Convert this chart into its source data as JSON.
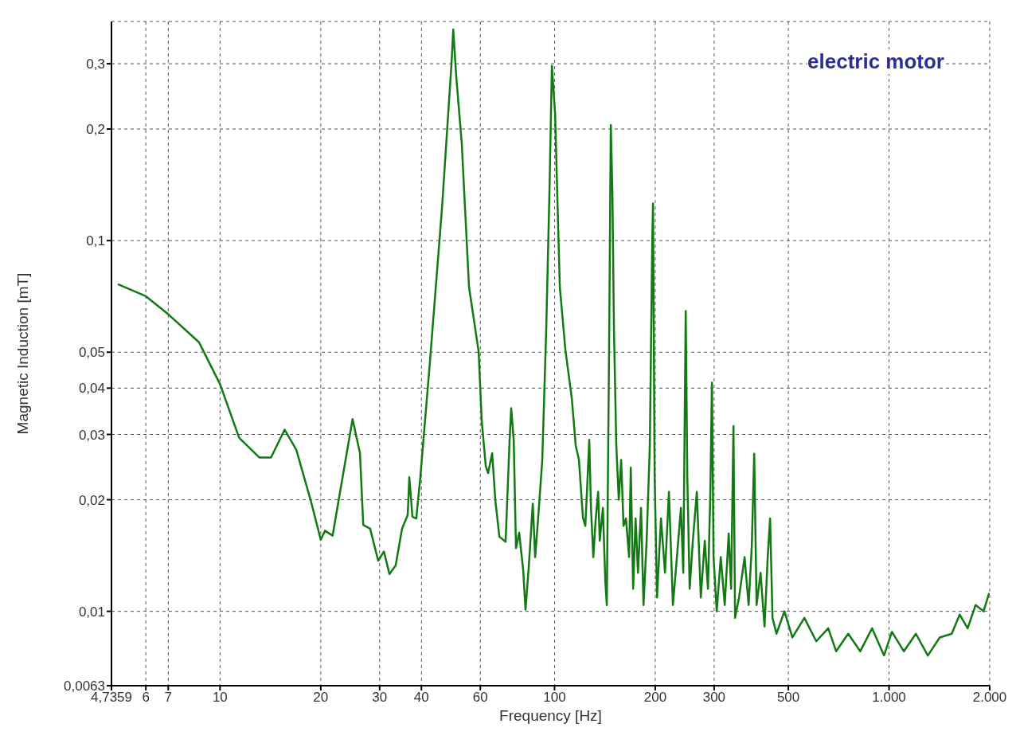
{
  "chart_data": {
    "type": "line",
    "xlabel": "Frequency [Hz]",
    "ylabel": "Magnetic Induction [mT]",
    "annotations": [
      "electric motor"
    ],
    "log": "xy",
    "grid": true,
    "marker": "none",
    "line_style": "solid",
    "xlim": [
      4.7359,
      2000
    ],
    "xticks": [
      {
        "value": 4.7359,
        "label": "4,7359"
      },
      6,
      7,
      10,
      20,
      30,
      40,
      60,
      100,
      200,
      300,
      500,
      {
        "value": 1000,
        "label": "1.000"
      },
      {
        "value": 2000,
        "label": "2.000"
      }
    ],
    "ylim": [
      0.0063,
      0.39
    ],
    "yticks": [
      {
        "value": 0.0063,
        "label": "0,0063"
      },
      {
        "value": 0.01,
        "label": "0,01"
      },
      {
        "value": 0.02,
        "label": "0,02"
      },
      {
        "value": 0.03,
        "label": "0,03"
      },
      {
        "value": 0.04,
        "label": "0,04"
      },
      {
        "value": 0.05,
        "label": "0,05"
      },
      {
        "value": 0.1,
        "label": "0,1"
      },
      {
        "value": 0.2,
        "label": "0,2"
      },
      {
        "value": 0.3,
        "label": "0,3"
      }
    ],
    "series": [
      {
        "color": "#137a13",
        "x": [
          4.95,
          6,
          7,
          8.65,
          10,
          11.4,
          13.1,
          14.2,
          15.6,
          16.9,
          18.7,
          20,
          20.6,
          21.7,
          24.9,
          26.2,
          26.8,
          28.1,
          29.7,
          30.9,
          32.1,
          33.5,
          35,
          36.4,
          36.8,
          37.6,
          38.6,
          39.7,
          42.5,
          46.1,
          49.2,
          49.8,
          50.8,
          52.8,
          55.5,
          59.3,
          60.6,
          62.3,
          63.3,
          65.1,
          66.5,
          68.4,
          71.4,
          73.4,
          74.2,
          75.5,
          76.7,
          78.4,
          80.6,
          81.9,
          83.8,
          86.1,
          87.5,
          89.4,
          91.9,
          94.5,
          96.6,
          98.2,
          100.4,
          102,
          103.7,
          107.8,
          112.6,
          115.7,
          118.3,
          121.6,
          123.6,
          125,
          127,
          128.5,
          130.6,
          132.8,
          135,
          136.5,
          139.5,
          141.8,
          143.3,
          145.7,
          147.3,
          148.9,
          150.6,
          153,
          155.6,
          158.2,
          160.8,
          163.5,
          167.1,
          169,
          171.8,
          174.7,
          177.6,
          181.4,
          184.5,
          188.5,
          192.7,
          196,
          197,
          199.2,
          202.5,
          208.1,
          213.9,
          219.8,
          225.9,
          232.2,
          238.7,
          242.6,
          246.7,
          249.4,
          253.5,
          259.1,
          266.3,
          273.7,
          281.3,
          287.5,
          292.3,
          295.5,
          298.8,
          305.4,
          314,
          322.7,
          331.6,
          337.2,
          342.7,
          346.5,
          356.1,
          370,
          380.4,
          388.8,
          395.3,
          401.8,
          413,
          424.4,
          433.8,
          441,
          448.4,
          460.8,
          486.7,
          514.1,
          558.4,
          606,
          658,
          695,
          755,
          820,
          890,
          966,
          1020,
          1108,
          1203,
          1306,
          1418,
          1540,
          1626,
          1718,
          1815,
          1917,
          1992
        ],
        "values": [
          0.0763,
          0.0708,
          0.0633,
          0.0532,
          0.041,
          0.0294,
          0.026,
          0.026,
          0.0309,
          0.0273,
          0.0198,
          0.0156,
          0.0165,
          0.016,
          0.033,
          0.0267,
          0.0171,
          0.0167,
          0.0137,
          0.0145,
          0.0126,
          0.0133,
          0.0167,
          0.0182,
          0.023,
          0.018,
          0.0178,
          0.023,
          0.0482,
          0.123,
          0.3,
          0.371,
          0.279,
          0.183,
          0.075,
          0.0502,
          0.0325,
          0.0246,
          0.0236,
          0.0267,
          0.02,
          0.0159,
          0.0154,
          0.029,
          0.0353,
          0.029,
          0.0148,
          0.0163,
          0.0129,
          0.0101,
          0.0133,
          0.0195,
          0.014,
          0.018,
          0.0256,
          0.0589,
          0.138,
          0.296,
          0.22,
          0.129,
          0.075,
          0.0506,
          0.0376,
          0.028,
          0.0256,
          0.0179,
          0.017,
          0.021,
          0.029,
          0.019,
          0.014,
          0.0178,
          0.021,
          0.0155,
          0.019,
          0.0121,
          0.0104,
          0.056,
          0.205,
          0.136,
          0.056,
          0.028,
          0.02,
          0.0256,
          0.017,
          0.0178,
          0.014,
          0.0244,
          0.0115,
          0.0178,
          0.0127,
          0.019,
          0.0104,
          0.0155,
          0.028,
          0.101,
          0.126,
          0.0232,
          0.0109,
          0.0178,
          0.0127,
          0.021,
          0.0104,
          0.014,
          0.019,
          0.0127,
          0.0646,
          0.0232,
          0.0115,
          0.0155,
          0.021,
          0.0109,
          0.0155,
          0.0115,
          0.021,
          0.0414,
          0.014,
          0.01,
          0.014,
          0.0104,
          0.0162,
          0.0115,
          0.0316,
          0.0096,
          0.0109,
          0.014,
          0.0104,
          0.015,
          0.0266,
          0.0104,
          0.0127,
          0.0091,
          0.014,
          0.0178,
          0.0096,
          0.0087,
          0.01,
          0.0085,
          0.0096,
          0.0083,
          0.009,
          0.0078,
          0.0087,
          0.0078,
          0.009,
          0.0076,
          0.0088,
          0.0078,
          0.0087,
          0.0076,
          0.0085,
          0.0087,
          0.0098,
          0.009,
          0.0104,
          0.01,
          0.0112
        ]
      }
    ]
  }
}
